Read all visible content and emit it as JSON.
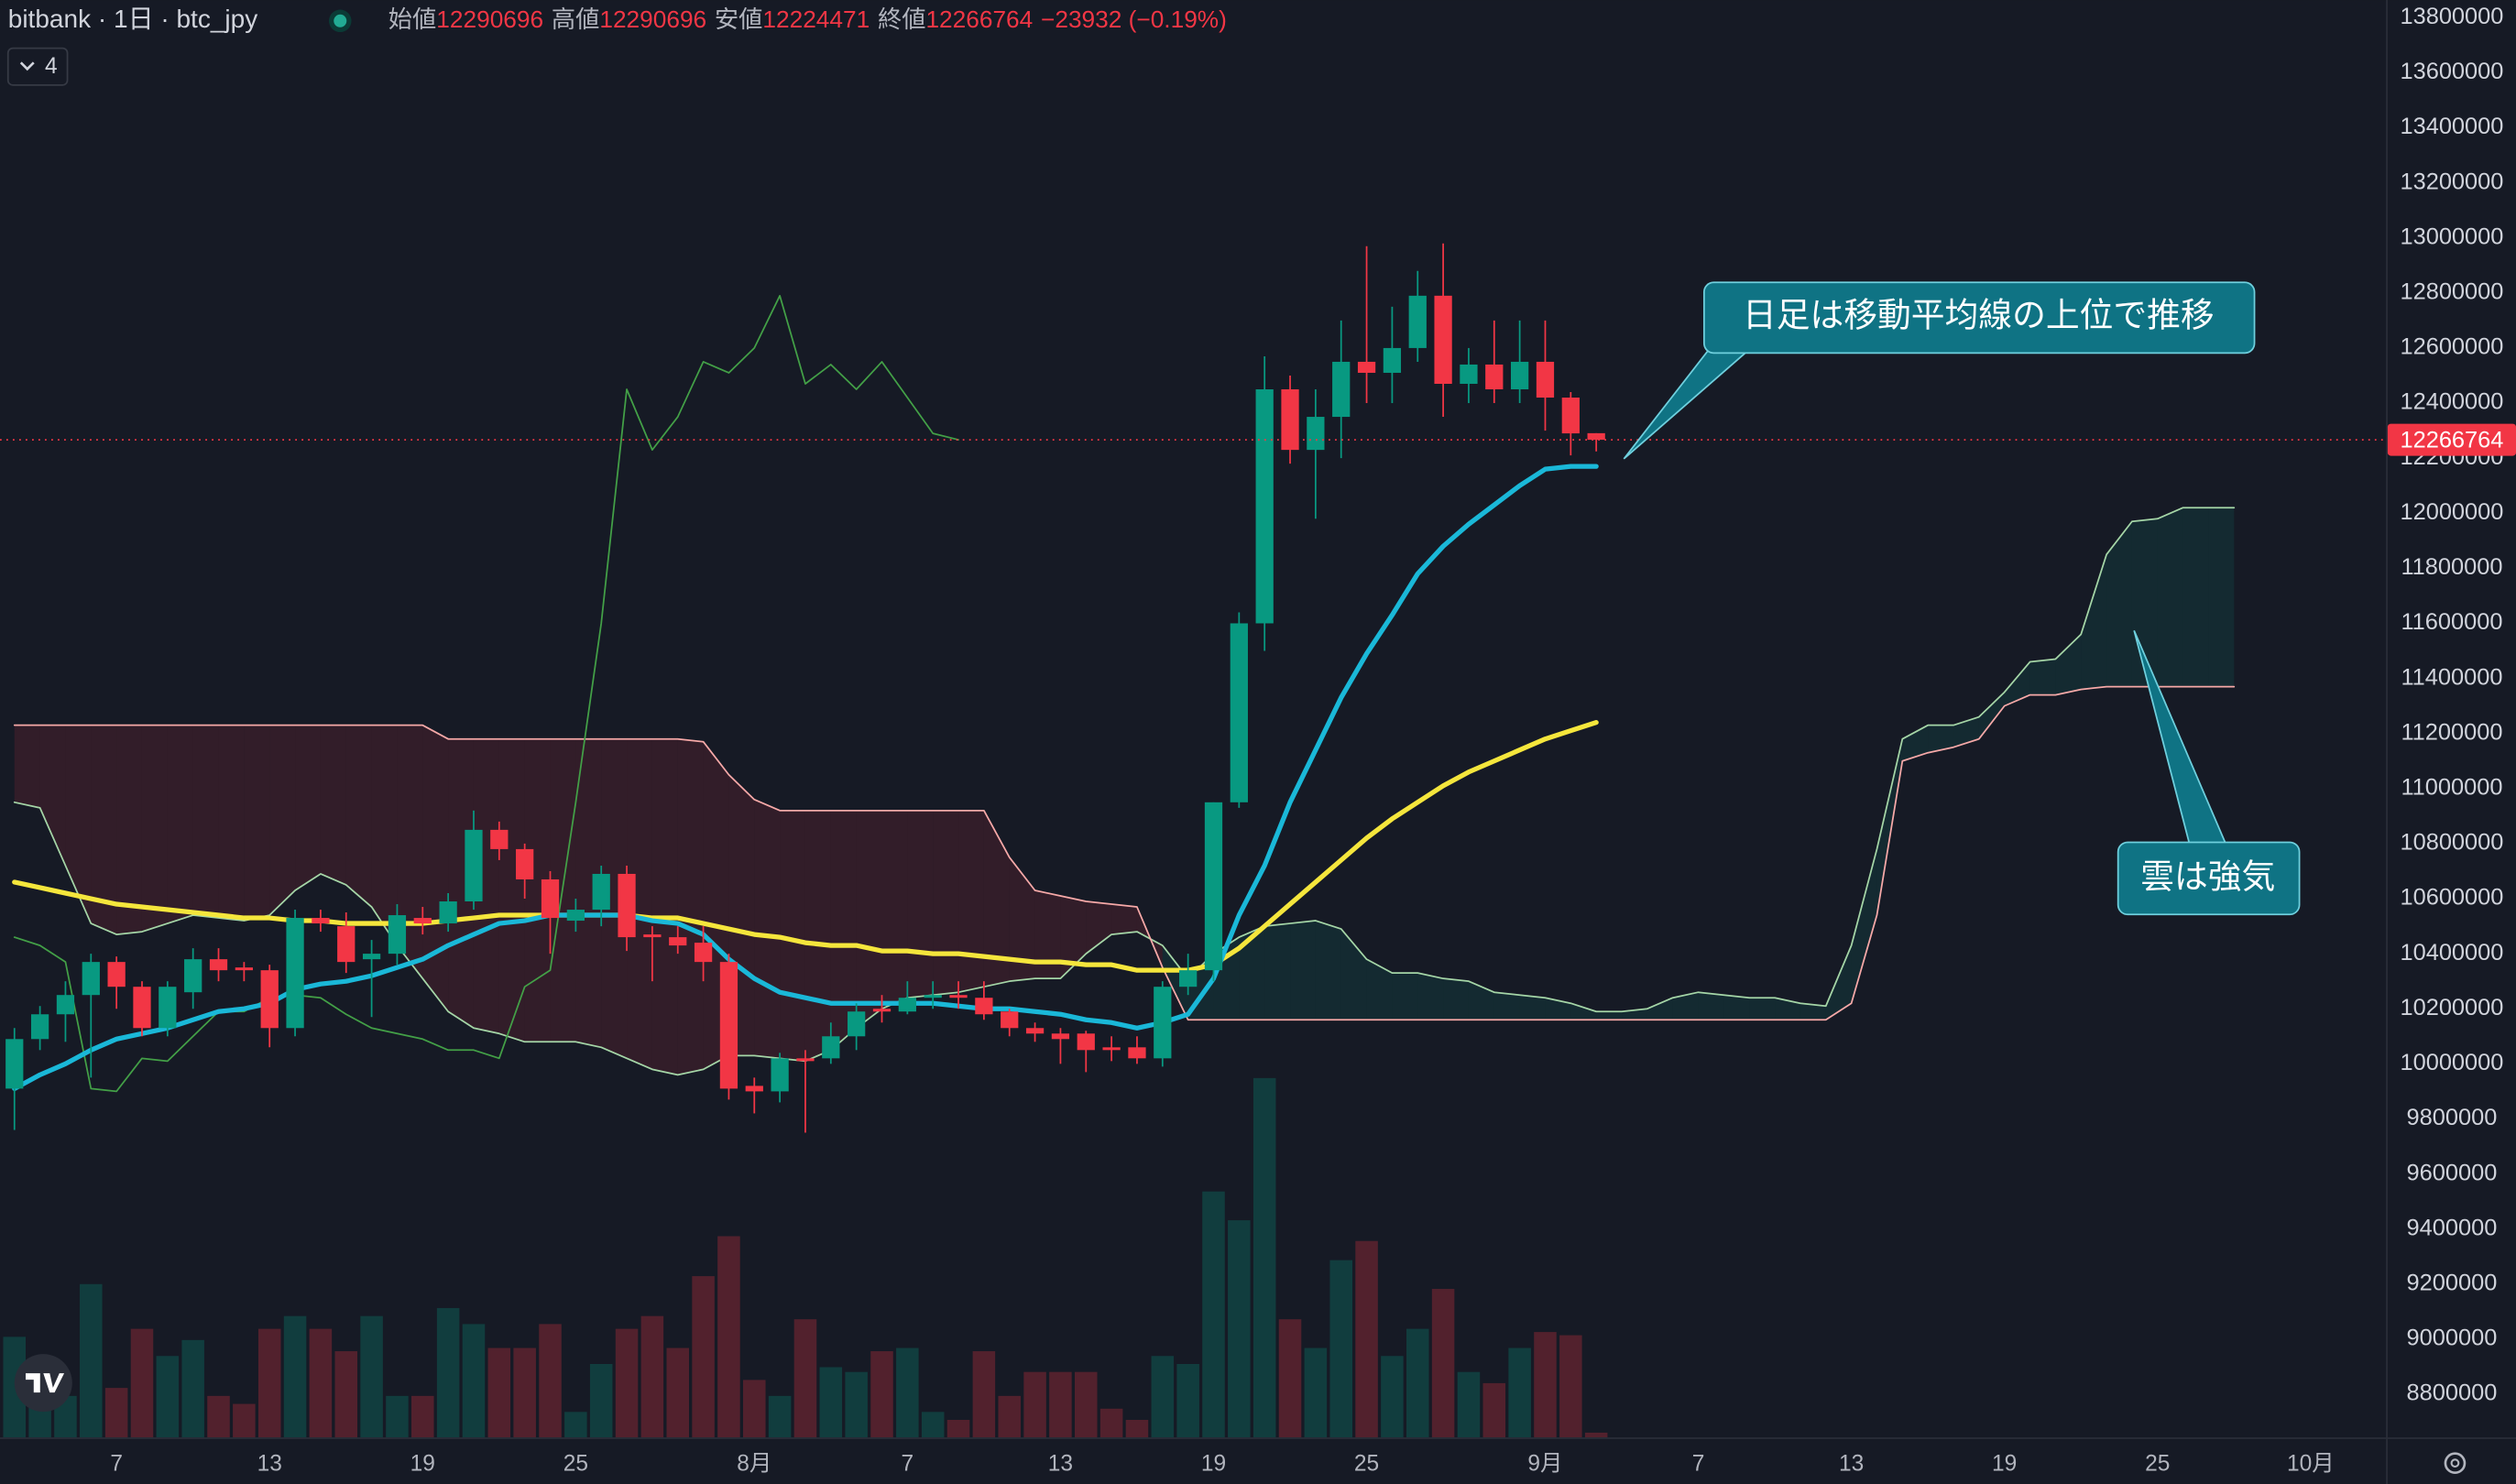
{
  "chart_data": {
    "type": "candlestick",
    "header": {
      "symbol": "bitbank · 1日 · btc_jpy",
      "open_label": "始値",
      "open": 12290696,
      "high_label": "高値",
      "high": 12290696,
      "low_label": "安値",
      "low": 12224471,
      "close_label": "終値",
      "close": 12266764,
      "change": "−23932 (−0.19%)",
      "indicator_count": 4
    },
    "categories": [
      null,
      null,
      null,
      null,
      "7",
      null,
      null,
      null,
      null,
      null,
      "13",
      null,
      null,
      null,
      null,
      null,
      "19",
      null,
      null,
      null,
      null,
      null,
      "25",
      null,
      null,
      null,
      null,
      null,
      null,
      "8月",
      null,
      null,
      null,
      null,
      null,
      "7",
      null,
      null,
      null,
      null,
      null,
      "13",
      null,
      null,
      null,
      null,
      null,
      "19",
      null,
      null,
      null,
      null,
      null,
      "25",
      null,
      null,
      null,
      null,
      null,
      null,
      "9月",
      null,
      null,
      null,
      null,
      null,
      "7",
      null,
      null,
      null,
      null,
      null,
      "13",
      null,
      null,
      null,
      null,
      null,
      "19",
      null,
      null,
      null,
      null,
      null,
      "25",
      null,
      null,
      null,
      null,
      null,
      "10月",
      null,
      null,
      null
    ],
    "open": [
      9910000,
      10090000,
      10180000,
      10250000,
      10370000,
      10280000,
      10130000,
      10260000,
      10380000,
      10350000,
      10340000,
      10130000,
      10530000,
      10500000,
      10380000,
      10400000,
      10530000,
      10510000,
      10590000,
      10850000,
      10780000,
      10670000,
      10520000,
      10560000,
      10690000,
      10470000,
      10460000,
      10440000,
      10370000,
      9920000,
      9900000,
      10020000,
      10020000,
      10100000,
      10200000,
      10190000,
      10240000,
      10250000,
      10240000,
      10190000,
      10130000,
      10110000,
      10110000,
      10060000,
      10060000,
      10020000,
      10280000,
      10340000,
      10950000,
      11600000,
      12450000,
      12230000,
      12350000,
      12550000,
      12510000,
      12600000,
      12790000,
      12470000,
      12540000,
      12450000,
      12550000,
      12420000,
      12290696,
      null,
      null,
      null,
      null,
      null,
      null,
      null,
      null,
      null,
      null,
      null,
      null,
      null,
      null,
      null,
      null,
      null,
      null,
      null,
      null,
      null,
      null,
      null,
      null,
      null,
      null,
      null,
      null,
      null,
      null,
      null
    ],
    "high": [
      10130000,
      10210000,
      10300000,
      10400000,
      10390000,
      10300000,
      10300000,
      10420000,
      10420000,
      10370000,
      10360000,
      10560000,
      10560000,
      10550000,
      10450000,
      10580000,
      10570000,
      10620000,
      10920000,
      10880000,
      10800000,
      10700000,
      10600000,
      10720000,
      10720000,
      10500000,
      10500000,
      10500000,
      10400000,
      9950000,
      10040000,
      10050000,
      10150000,
      10220000,
      10250000,
      10300000,
      10300000,
      10300000,
      10300000,
      10200000,
      10150000,
      10130000,
      10120000,
      10100000,
      10100000,
      10300000,
      10400000,
      10950000,
      11640000,
      12570000,
      12500000,
      12450000,
      12700000,
      12970000,
      12750000,
      12880000,
      12980000,
      12600000,
      12700000,
      12700000,
      12700000,
      12440000,
      12290696,
      null,
      null,
      null,
      null,
      null,
      null,
      null,
      null,
      null,
      null,
      null,
      null,
      null,
      null,
      null,
      null,
      null,
      null,
      null,
      null,
      null,
      null,
      null,
      null,
      null,
      null,
      null,
      null,
      null,
      null,
      null
    ],
    "low": [
      9760000,
      10050000,
      10080000,
      9950000,
      10200000,
      10100000,
      10100000,
      10200000,
      10300000,
      10300000,
      10060000,
      10100000,
      10480000,
      10330000,
      10170000,
      10360000,
      10470000,
      10480000,
      10560000,
      10740000,
      10600000,
      10400000,
      10480000,
      10500000,
      10410000,
      10300000,
      10400000,
      10300000,
      9870000,
      9820000,
      9860000,
      9750000,
      10000000,
      10050000,
      10150000,
      10180000,
      10200000,
      10200000,
      10160000,
      10100000,
      10080000,
      10000000,
      9970000,
      10010000,
      10000000,
      9990000,
      10250000,
      10300000,
      10930000,
      11500000,
      12180000,
      11980000,
      12200000,
      12400000,
      12400000,
      12550000,
      12350000,
      12400000,
      12400000,
      12400000,
      12300000,
      12210000,
      12224471,
      null,
      null,
      null,
      null,
      null,
      null,
      null,
      null,
      null,
      null,
      null,
      null,
      null,
      null,
      null,
      null,
      null,
      null,
      null,
      null,
      null,
      null,
      null,
      null,
      null,
      null,
      null,
      null,
      null,
      null,
      null
    ],
    "close": [
      10090000,
      10180000,
      10250000,
      10370000,
      10280000,
      10130000,
      10280000,
      10380000,
      10340000,
      10340000,
      10130000,
      10530000,
      10510000,
      10370000,
      10400000,
      10540000,
      10510000,
      10590000,
      10850000,
      10780000,
      10670000,
      10530000,
      10560000,
      10690000,
      10460000,
      10460000,
      10430000,
      10370000,
      9910000,
      9900000,
      10020000,
      10010000,
      10100000,
      10190000,
      10190000,
      10240000,
      10250000,
      10240000,
      10180000,
      10130000,
      10110000,
      10090000,
      10050000,
      10050000,
      10020000,
      10280000,
      10340000,
      10950000,
      11600000,
      12450000,
      12230000,
      12350000,
      12550000,
      12510000,
      12600000,
      12790000,
      12470000,
      12540000,
      12450000,
      12550000,
      12420000,
      12290000,
      12266764,
      null,
      null,
      null,
      null,
      null,
      null,
      null,
      null,
      null,
      null,
      null,
      null,
      null,
      null,
      null,
      null,
      null,
      null,
      null,
      null,
      null,
      null,
      null,
      null,
      null,
      null,
      null,
      null,
      null,
      null,
      null
    ],
    "up_color": "#089981",
    "down_color": "#f23645",
    "volume": [
      63,
      36,
      26,
      96,
      31,
      68,
      51,
      61,
      26,
      21,
      68,
      76,
      68,
      54,
      76,
      26,
      26,
      81,
      71,
      56,
      56,
      71,
      16,
      46,
      68,
      76,
      56,
      101,
      126,
      36,
      26,
      74,
      44,
      41,
      54,
      56,
      16,
      11,
      54,
      26,
      41,
      41,
      41,
      18,
      11,
      51,
      46,
      154,
      136,
      225,
      74,
      56,
      111,
      123,
      51,
      68,
      93,
      41,
      34,
      56,
      66,
      64,
      3,
      null,
      null,
      null,
      null,
      null,
      null,
      null,
      null,
      null,
      null,
      null,
      null,
      null,
      null,
      null,
      null,
      null,
      null,
      null,
      null,
      null,
      null,
      null,
      null,
      null,
      null,
      null,
      null,
      null,
      null,
      null
    ],
    "volume_lim": [
      0,
      900
    ],
    "ma_short": {
      "color": "#1ab8d8",
      "values": [
        9910000,
        9960000,
        10000000,
        10050000,
        10090000,
        10110000,
        10130000,
        10160000,
        10190000,
        10200000,
        10220000,
        10270000,
        10290000,
        10300000,
        10320000,
        10350000,
        10380000,
        10430000,
        10470000,
        10510000,
        10520000,
        10540000,
        10540000,
        10540000,
        10540000,
        10520000,
        10510000,
        10470000,
        10380000,
        10310000,
        10260000,
        10240000,
        10220000,
        10220000,
        10220000,
        10220000,
        10220000,
        10210000,
        10200000,
        10200000,
        10190000,
        10180000,
        10160000,
        10150000,
        10130000,
        10150000,
        10180000,
        10310000,
        10540000,
        10720000,
        10950000,
        11140000,
        11330000,
        11490000,
        11630000,
        11780000,
        11880000,
        11960000,
        12030000,
        12100000,
        12160000,
        12170000,
        12170000,
        null,
        null,
        null,
        null,
        null,
        null,
        null,
        null,
        null,
        null,
        null,
        null,
        null,
        null,
        null,
        null,
        null,
        null,
        null,
        null,
        null,
        null,
        null,
        null,
        null,
        null,
        null,
        null,
        null,
        null,
        null
      ]
    },
    "ma_long": {
      "color": "#f5e63c",
      "values": [
        10660000,
        10640000,
        10620000,
        10600000,
        10580000,
        10570000,
        10560000,
        10550000,
        10540000,
        10530000,
        10530000,
        10520000,
        10520000,
        10510000,
        10510000,
        10510000,
        10510000,
        10520000,
        10530000,
        10540000,
        10540000,
        10540000,
        10540000,
        10540000,
        10540000,
        10530000,
        10530000,
        10510000,
        10490000,
        10470000,
        10460000,
        10440000,
        10430000,
        10430000,
        10410000,
        10410000,
        10400000,
        10400000,
        10390000,
        10380000,
        10370000,
        10370000,
        10360000,
        10360000,
        10340000,
        10340000,
        10340000,
        10360000,
        10420000,
        10500000,
        10580000,
        10660000,
        10740000,
        10820000,
        10890000,
        10950000,
        11010000,
        11060000,
        11100000,
        11140000,
        11180000,
        11210000,
        11240000,
        null,
        null,
        null,
        null,
        null,
        null,
        null,
        null,
        null,
        null,
        null,
        null,
        null,
        null,
        null,
        null,
        null,
        null,
        null,
        null,
        null,
        null,
        null,
        null,
        null,
        null,
        null,
        null,
        null,
        null,
        null
      ]
    },
    "span_a": {
      "color": "#a5d6a7",
      "fill": "rgba(8,153,129,0.13)",
      "values": [
        10950000,
        10930000,
        10720000,
        10510000,
        10470000,
        10480000,
        10510000,
        10540000,
        10530000,
        10520000,
        10540000,
        10630000,
        10690000,
        10650000,
        10570000,
        10430000,
        10310000,
        10190000,
        10130000,
        10110000,
        10080000,
        10080000,
        10080000,
        10060000,
        10020000,
        9980000,
        9960000,
        9980000,
        10030000,
        10030000,
        10020000,
        10010000,
        10050000,
        10130000,
        10200000,
        10240000,
        10250000,
        10260000,
        10280000,
        10300000,
        10310000,
        10310000,
        10400000,
        10470000,
        10480000,
        10430000,
        10310000,
        10400000,
        10460000,
        10500000,
        10510000,
        10520000,
        10490000,
        10380000,
        10330000,
        10330000,
        10310000,
        10300000,
        10260000,
        10250000,
        10240000,
        10220000,
        10190000,
        10190000,
        10200000,
        10240000,
        10260000,
        10250000,
        10240000,
        10240000,
        10220000,
        10210000,
        10430000,
        10780000,
        11180000,
        11230000,
        11230000,
        11260000,
        11350000,
        11460000,
        11470000,
        11560000,
        11850000,
        11970000,
        11980000,
        12020000,
        12020000,
        12020000,
        null,
        null,
        null,
        null,
        null,
        null
      ]
    },
    "span_b": {
      "color": "#f7a9a8",
      "fill": "rgba(242,54,69,0.13)",
      "values": [
        11230000,
        11230000,
        11230000,
        11230000,
        11230000,
        11230000,
        11230000,
        11230000,
        11230000,
        11230000,
        11230000,
        11230000,
        11230000,
        11230000,
        11230000,
        11230000,
        11230000,
        11180000,
        11180000,
        11180000,
        11180000,
        11180000,
        11180000,
        11180000,
        11180000,
        11180000,
        11180000,
        11170000,
        11050000,
        10960000,
        10920000,
        10920000,
        10920000,
        10920000,
        10920000,
        10920000,
        10920000,
        10920000,
        10920000,
        10750000,
        10630000,
        10610000,
        10590000,
        10580000,
        10570000,
        10350000,
        10160000,
        10160000,
        10160000,
        10160000,
        10160000,
        10160000,
        10160000,
        10160000,
        10160000,
        10160000,
        10160000,
        10160000,
        10160000,
        10160000,
        10160000,
        10160000,
        10160000,
        10160000,
        10160000,
        10160000,
        10160000,
        10160000,
        10160000,
        10160000,
        10160000,
        10160000,
        10220000,
        10540000,
        11100000,
        11130000,
        11150000,
        11180000,
        11300000,
        11340000,
        11340000,
        11360000,
        11370000,
        11370000,
        11370000,
        11370000,
        11370000,
        11370000,
        null,
        null,
        null,
        null,
        null,
        null
      ]
    },
    "lagging": {
      "color": "#43a047",
      "values": [
        10460000,
        10430000,
        10370000,
        9910000,
        9900000,
        10020000,
        10010000,
        10100000,
        10190000,
        10190000,
        10240000,
        10250000,
        10240000,
        10180000,
        10130000,
        10110000,
        10090000,
        10050000,
        10050000,
        10020000,
        10280000,
        10340000,
        10950000,
        11600000,
        12450000,
        12230000,
        12350000,
        12550000,
        12510000,
        12600000,
        12790000,
        12470000,
        12540000,
        12450000,
        12550000,
        12420000,
        12290000,
        12266764,
        null,
        null,
        null,
        null,
        null,
        null,
        null,
        null,
        null,
        null,
        null,
        null,
        null,
        null,
        null,
        null,
        null,
        null,
        null,
        null,
        null,
        null,
        null,
        null,
        null,
        null,
        null,
        null,
        null,
        null,
        null,
        null,
        null,
        null,
        null,
        null,
        null,
        null,
        null,
        null,
        null,
        null,
        null,
        null,
        null,
        null,
        null,
        null,
        null,
        null,
        null,
        null,
        null,
        null,
        null,
        null
      ]
    },
    "ylim": [
      8643000,
      13864000
    ],
    "yticks": [
      8800000,
      9000000,
      9200000,
      9400000,
      9600000,
      9800000,
      10000000,
      10200000,
      10400000,
      10600000,
      10800000,
      11000000,
      11200000,
      11400000,
      11600000,
      11800000,
      12000000,
      12200000,
      12400000,
      12600000,
      12800000,
      13000000,
      13200000,
      13400000,
      13600000,
      13800000
    ],
    "last_price": 12266764,
    "annotations": [
      "日足は移動平均線の上位で推移",
      "雲は強気"
    ]
  }
}
